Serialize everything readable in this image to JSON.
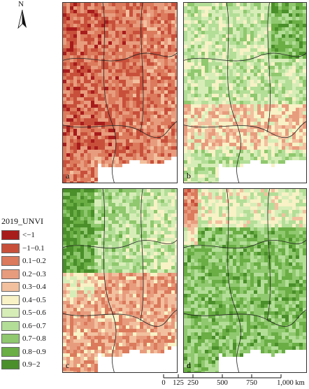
{
  "north_label": "N",
  "panels": [
    {
      "id": "a",
      "label": "a"
    },
    {
      "id": "b",
      "label": "b"
    },
    {
      "id": "c",
      "label": "c"
    },
    {
      "id": "d",
      "label": "d"
    }
  ],
  "legend": {
    "title": "2019_UNVI",
    "items": [
      {
        "label": "<−1",
        "color": "#a81c1c"
      },
      {
        "label": "−1−0.1",
        "color": "#c8503b"
      },
      {
        "label": "0.1−0.2",
        "color": "#db7a5c"
      },
      {
        "label": "0.2−0.3",
        "color": "#e89c7e"
      },
      {
        "label": "0.3−0.4",
        "color": "#f2c09e"
      },
      {
        "label": "0.4−0.5",
        "color": "#f8f2c6"
      },
      {
        "label": "0.5−0.6",
        "color": "#d7edb8"
      },
      {
        "label": "0.6−0.7",
        "color": "#b3de98"
      },
      {
        "label": "0.7−0.8",
        "color": "#8fc86e"
      },
      {
        "label": "0.8−0.9",
        "color": "#6aae45"
      },
      {
        "label": "0.9−2",
        "color": "#4a8f2a"
      }
    ]
  },
  "scale_bar": {
    "ticks": [
      "0",
      "125",
      "250",
      "500",
      "750",
      "1,000 km"
    ],
    "values": [
      0,
      125,
      250,
      500,
      750,
      1000
    ]
  }
}
